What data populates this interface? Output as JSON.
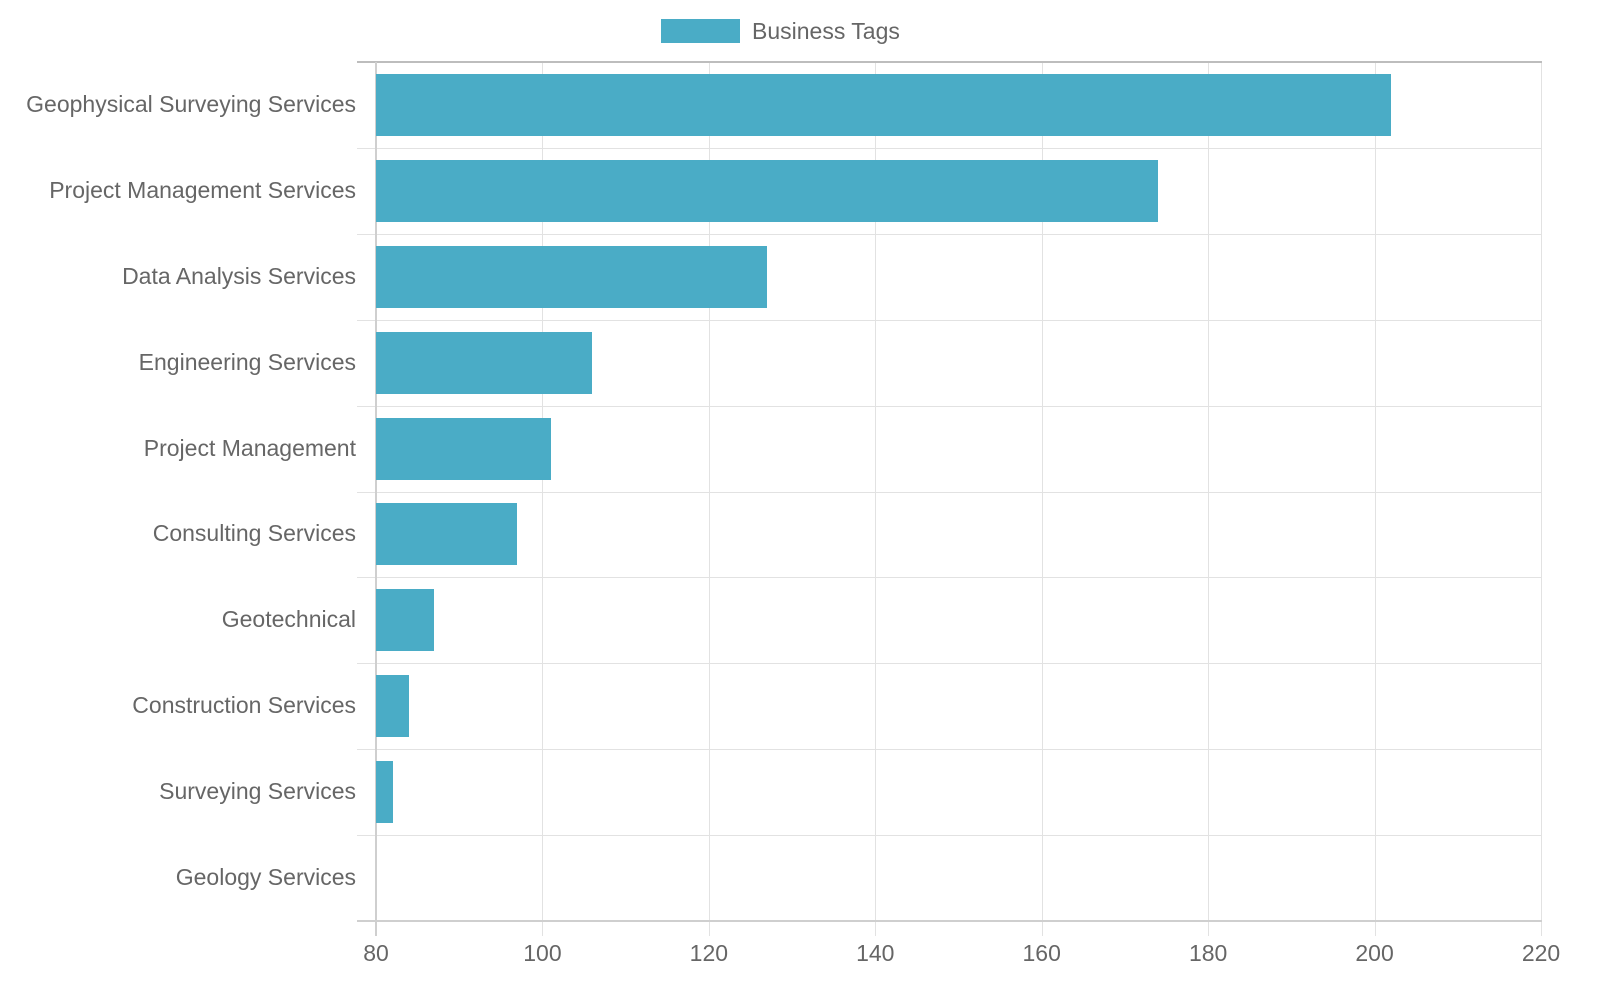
{
  "legend": {
    "label": "Business Tags",
    "color": "#4aacc6"
  },
  "chart_data": {
    "type": "bar",
    "orientation": "horizontal",
    "title": "",
    "xlabel": "",
    "ylabel": "",
    "xlim": [
      80,
      220
    ],
    "x_ticks": [
      "80",
      "100",
      "120",
      "140",
      "160",
      "180",
      "200",
      "220"
    ],
    "grid": true,
    "legend_position": "top",
    "categories": [
      "Geophysical Surveying Services",
      "Project Management Services",
      "Data Analysis Services",
      "Engineering Services",
      "Project Management",
      "Consulting Services",
      "Geotechnical",
      "Construction Services",
      "Surveying Services",
      "Geology Services"
    ],
    "series": [
      {
        "name": "Business Tags",
        "color": "#4aacc6",
        "values": [
          202,
          174,
          127,
          106,
          101,
          97,
          87,
          84,
          82,
          80
        ]
      }
    ]
  }
}
